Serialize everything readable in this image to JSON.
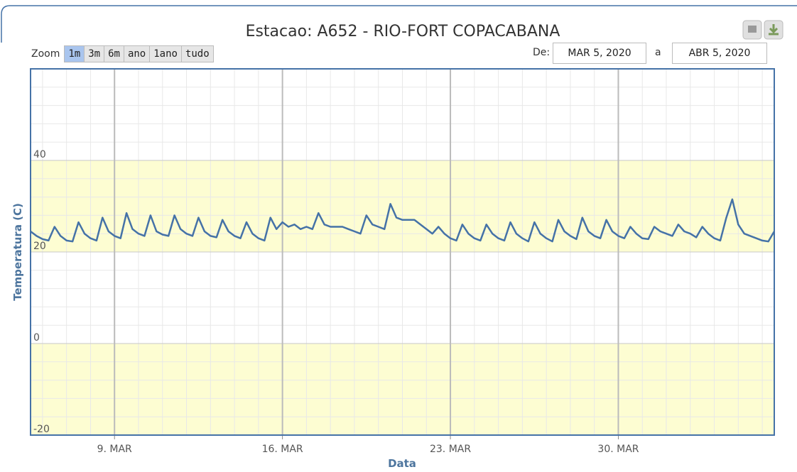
{
  "chart_data": {
    "type": "line",
    "title": "Estacao: A652 - RIO-FORT COPACABANA",
    "y_label": "Temperatura (C)",
    "x_label": "Data",
    "x": [
      "2020-03-05T12:00",
      "2020-03-05T18:00",
      "2020-03-06T00:00",
      "2020-03-06T06:00",
      "2020-03-06T12:00",
      "2020-03-06T18:00",
      "2020-03-07T00:00",
      "2020-03-07T06:00",
      "2020-03-07T12:00",
      "2020-03-07T18:00",
      "2020-03-08T00:00",
      "2020-03-08T06:00",
      "2020-03-08T12:00",
      "2020-03-08T18:00",
      "2020-03-09T00:00",
      "2020-03-09T06:00",
      "2020-03-09T12:00",
      "2020-03-09T18:00",
      "2020-03-10T00:00",
      "2020-03-10T06:00",
      "2020-03-10T12:00",
      "2020-03-10T18:00",
      "2020-03-11T00:00",
      "2020-03-11T06:00",
      "2020-03-11T12:00",
      "2020-03-11T18:00",
      "2020-03-12T00:00",
      "2020-03-12T06:00",
      "2020-03-12T12:00",
      "2020-03-12T18:00",
      "2020-03-13T00:00",
      "2020-03-13T06:00",
      "2020-03-13T12:00",
      "2020-03-13T18:00",
      "2020-03-14T00:00",
      "2020-03-14T06:00",
      "2020-03-14T12:00",
      "2020-03-14T18:00",
      "2020-03-15T00:00",
      "2020-03-15T06:00",
      "2020-03-15T12:00",
      "2020-03-15T18:00",
      "2020-03-16T00:00",
      "2020-03-16T06:00",
      "2020-03-16T12:00",
      "2020-03-16T18:00",
      "2020-03-17T00:00",
      "2020-03-17T06:00",
      "2020-03-17T12:00",
      "2020-03-17T18:00",
      "2020-03-18T00:00",
      "2020-03-18T06:00",
      "2020-03-18T12:00",
      "2020-03-18T18:00",
      "2020-03-19T00:00",
      "2020-03-19T06:00",
      "2020-03-19T12:00",
      "2020-03-19T18:00",
      "2020-03-20T00:00",
      "2020-03-20T06:00",
      "2020-03-20T12:00",
      "2020-03-20T18:00",
      "2020-03-21T00:00",
      "2020-03-21T06:00",
      "2020-03-21T12:00",
      "2020-03-21T18:00",
      "2020-03-22T00:00",
      "2020-03-22T06:00",
      "2020-03-22T12:00",
      "2020-03-22T18:00",
      "2020-03-23T00:00",
      "2020-03-23T06:00",
      "2020-03-23T12:00",
      "2020-03-23T18:00",
      "2020-03-24T00:00",
      "2020-03-24T06:00",
      "2020-03-24T12:00",
      "2020-03-24T18:00",
      "2020-03-25T00:00",
      "2020-03-25T06:00",
      "2020-03-25T12:00",
      "2020-03-25T18:00",
      "2020-03-26T00:00",
      "2020-03-26T06:00",
      "2020-03-26T12:00",
      "2020-03-26T18:00",
      "2020-03-27T00:00",
      "2020-03-27T06:00",
      "2020-03-27T12:00",
      "2020-03-27T18:00",
      "2020-03-28T00:00",
      "2020-03-28T06:00",
      "2020-03-28T12:00",
      "2020-03-28T18:00",
      "2020-03-29T00:00",
      "2020-03-29T06:00",
      "2020-03-29T12:00",
      "2020-03-29T18:00",
      "2020-03-30T00:00",
      "2020-03-30T06:00",
      "2020-03-30T12:00",
      "2020-03-30T18:00",
      "2020-03-31T00:00",
      "2020-03-31T06:00",
      "2020-03-31T12:00",
      "2020-03-31T18:00",
      "2020-04-01T00:00",
      "2020-04-01T06:00",
      "2020-04-01T12:00",
      "2020-04-01T18:00",
      "2020-04-02T00:00",
      "2020-04-02T06:00",
      "2020-04-02T12:00",
      "2020-04-02T18:00",
      "2020-04-03T00:00",
      "2020-04-03T06:00",
      "2020-04-03T12:00",
      "2020-04-03T18:00",
      "2020-04-04T00:00",
      "2020-04-04T06:00",
      "2020-04-04T12:00",
      "2020-04-04T18:00",
      "2020-04-05T00:00",
      "2020-04-05T06:00",
      "2020-04-05T12:00"
    ],
    "series": [
      {
        "color": "#4572a7",
        "values": [
          24.5,
          23.5,
          22.8,
          22.5,
          25.5,
          23.5,
          22.5,
          22.3,
          26.5,
          24,
          23,
          22.5,
          27.5,
          24.5,
          23.5,
          23,
          28.5,
          25,
          24,
          23.5,
          28,
          24.5,
          23.8,
          23.5,
          28,
          25,
          24,
          23.5,
          27.5,
          24.5,
          23.5,
          23.2,
          27,
          24.5,
          23.5,
          23,
          26.5,
          24,
          23,
          22.5,
          27.5,
          25,
          26.5,
          25.5,
          26,
          25,
          25.5,
          25,
          28.5,
          26,
          25.5,
          25.5,
          25.5,
          25,
          24.5,
          24,
          28,
          26,
          25.5,
          25,
          30.5,
          27.5,
          27,
          27,
          27,
          26,
          25,
          24,
          25.5,
          24,
          23,
          22.5,
          26,
          24,
          23,
          22.5,
          26,
          24,
          23,
          22.5,
          26.5,
          24,
          23,
          22.3,
          26.5,
          24,
          23,
          22.3,
          27,
          24.5,
          23.5,
          22.8,
          27.5,
          24.5,
          23.5,
          23,
          27,
          24.5,
          23.5,
          23,
          25.5,
          24,
          23,
          22.8,
          25.5,
          24.5,
          24,
          23.5,
          26,
          24.5,
          24,
          23.2,
          25.5,
          24,
          23,
          22.5,
          27.5,
          31.5,
          26,
          24,
          23.5,
          23,
          22.5,
          22.3,
          24.5
        ]
      }
    ],
    "xlim": [
      "2020-03-05T12:00",
      "2020-04-05T12:00"
    ],
    "xticks": [
      {
        "value": "2020-03-09T00:00",
        "label": "9. MAR"
      },
      {
        "value": "2020-03-16T00:00",
        "label": "16. MAR"
      },
      {
        "value": "2020-03-23T00:00",
        "label": "23. MAR"
      },
      {
        "value": "2020-03-30T00:00",
        "label": "30. MAR"
      }
    ],
    "ylim": [
      -20,
      60
    ],
    "yticks": [
      -20,
      0,
      20,
      40
    ],
    "plot_bands": [
      {
        "from": 20,
        "to": 40
      },
      {
        "from": -20,
        "to": 0
      }
    ],
    "band_color": "#fdfdd2",
    "grid": true
  },
  "range_selector": {
    "zoom_label": "Zoom",
    "buttons": [
      "1m",
      "3m",
      "6m",
      "ano",
      "1ano",
      "tudo"
    ],
    "selected": 0,
    "from_label": "De:",
    "from": "MAR 5, 2020",
    "to_label": "a",
    "to": "ABR 5, 2020"
  }
}
